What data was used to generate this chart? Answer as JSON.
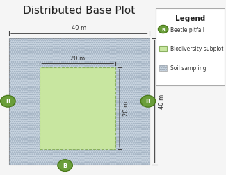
{
  "title": "Distributed Base Plot",
  "title_fontsize": 11,
  "bg_color": "#f5f5f5",
  "outer_square_color": "#c8d4e0",
  "outer_square_hatch_color": "#9aaabb",
  "inner_square_color": "#c8e6a0",
  "inner_square_edge_color": "#8ab060",
  "beetle_circle_color": "#6a9e3a",
  "beetle_circle_edge": "#4a7a1a",
  "beetle_text_color": "#ffffff",
  "legend_title": "Legend",
  "legend_items": [
    "Beetle pitfall",
    "Biodiversity subplot",
    "Soil sampling"
  ],
  "dim_40m_top": "40 m",
  "dim_40m_right": "40 m",
  "dim_20m_top": "20 m",
  "dim_20m_right": "20 m"
}
